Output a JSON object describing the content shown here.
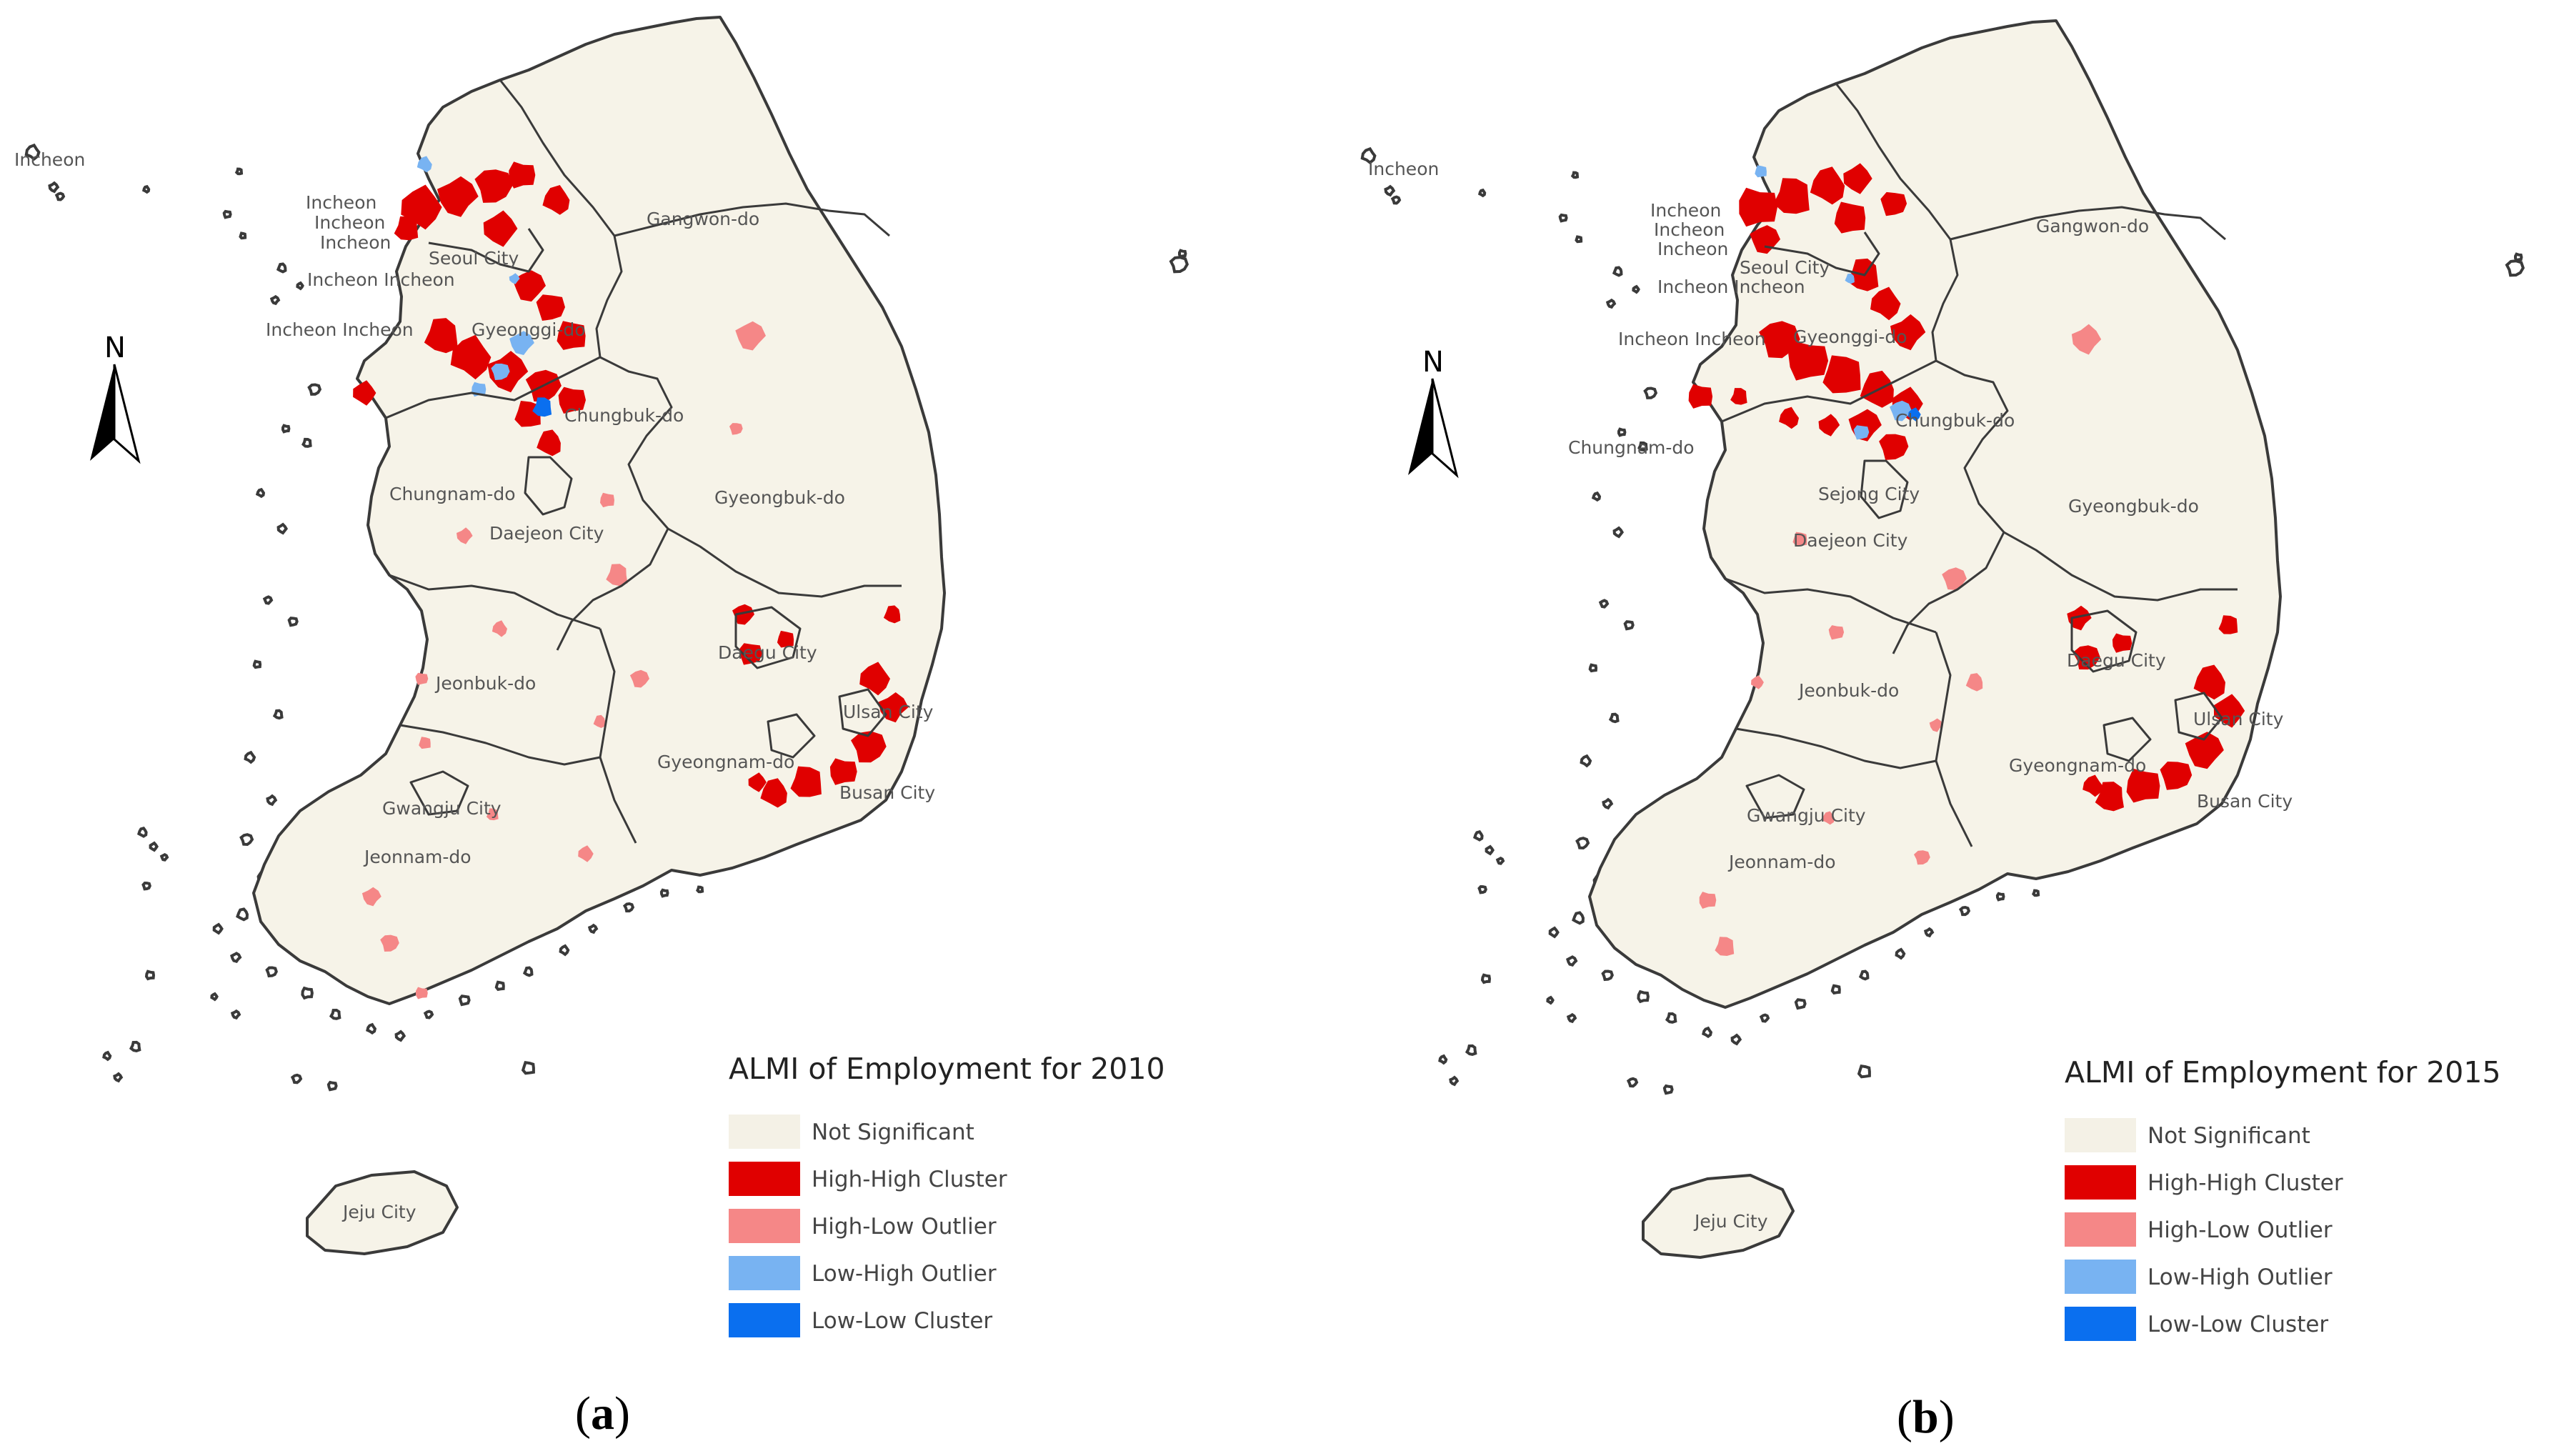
{
  "panels": [
    {
      "caption_letter": "a",
      "legend": {
        "title": "ALMI of Employment for 2010",
        "items": [
          {
            "label": "Not Significant",
            "color": "#f4f1e6"
          },
          {
            "label": "High-High Cluster",
            "color": "#e00000"
          },
          {
            "label": "High-Low Outlier",
            "color": "#f58787"
          },
          {
            "label": "Low-High Outlier",
            "color": "#78b3f2"
          },
          {
            "label": "Low-Low Cluster",
            "color": "#0a6fef"
          }
        ]
      },
      "north_label": "N",
      "place_labels": [
        "Incheon",
        "Incheon",
        "Incheon",
        "Incheon",
        "Seoul City",
        "Incheon Incheon",
        "Incheon Incheon",
        "Gyeonggi-do",
        "Gangwon-do",
        "Chungbuk-do",
        "Chungnam-do",
        "Daejeon City",
        "Gyeongbuk-do",
        "Daegu City",
        "Ulsan City",
        "Jeonbuk-do",
        "Gyeongnam-do",
        "Busan City",
        "Gwangju City",
        "Jeonnam-do",
        "Jeju City"
      ]
    },
    {
      "caption_letter": "b",
      "legend": {
        "title": "ALMI of Employment for 2015",
        "items": [
          {
            "label": "Not Significant",
            "color": "#f4f1e6"
          },
          {
            "label": "High-High Cluster",
            "color": "#e00000"
          },
          {
            "label": "High-Low Outlier",
            "color": "#f58787"
          },
          {
            "label": "Low-High Outlier",
            "color": "#78b3f2"
          },
          {
            "label": "Low-Low Cluster",
            "color": "#0a6fef"
          }
        ]
      },
      "north_label": "N",
      "place_labels": [
        "Incheon",
        "Incheon",
        "Incheon",
        "Incheon",
        "Seoul City",
        "Incheon Incheon",
        "Incheon Incheon",
        "Gyeonggi-do",
        "Gangwon-do",
        "Chungbuk-do",
        "Chungnam-do",
        "Sejong City",
        "Daejeon City",
        "Gyeongbuk-do",
        "Daegu City",
        "Ulsan City",
        "Jeonbuk-do",
        "Gyeongnam-do",
        "Busan City",
        "Gwangju City",
        "Jeonnam-do",
        "Jeju City"
      ]
    }
  ]
}
